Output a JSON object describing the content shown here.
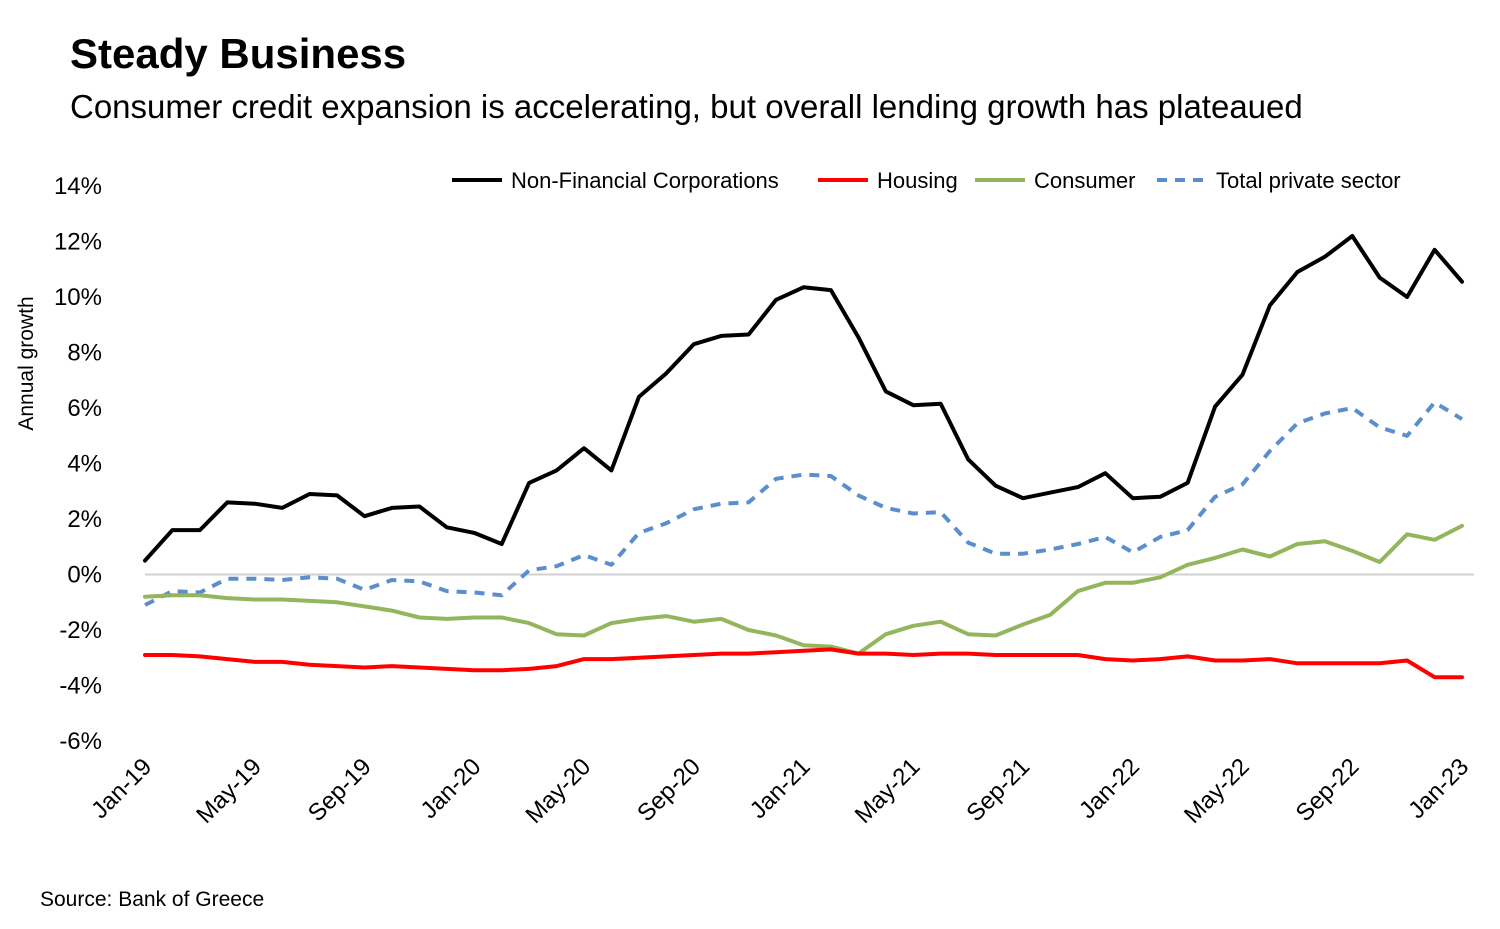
{
  "title": "Steady Business",
  "subtitle": "Consumer credit expansion is accelerating, but overall lending growth has plateaued",
  "source": "Source: Bank of Greece",
  "chart_data": {
    "type": "line",
    "ylabel": "Annual growth",
    "ylim": [
      -6,
      14
    ],
    "yticks": [
      14,
      12,
      10,
      8,
      6,
      4,
      2,
      0,
      -2,
      -4,
      -6
    ],
    "ytick_labels": [
      "14%",
      "12%",
      "10%",
      "8%",
      "6%",
      "4%",
      "2%",
      "0%",
      "-2%",
      "-4%",
      "-6%"
    ],
    "x": [
      "Jan-19",
      "Feb-19",
      "Mar-19",
      "Apr-19",
      "May-19",
      "Jun-19",
      "Jul-19",
      "Aug-19",
      "Sep-19",
      "Oct-19",
      "Nov-19",
      "Dec-19",
      "Jan-20",
      "Feb-20",
      "Mar-20",
      "Apr-20",
      "May-20",
      "Jun-20",
      "Jul-20",
      "Aug-20",
      "Sep-20",
      "Oct-20",
      "Nov-20",
      "Dec-20",
      "Jan-21",
      "Feb-21",
      "Mar-21",
      "Apr-21",
      "May-21",
      "Jun-21",
      "Jul-21",
      "Aug-21",
      "Sep-21",
      "Oct-21",
      "Nov-21",
      "Dec-21",
      "Jan-22",
      "Feb-22",
      "Mar-22",
      "Apr-22",
      "May-22",
      "Jun-22",
      "Jul-22",
      "Aug-22",
      "Sep-22",
      "Oct-22",
      "Nov-22",
      "Dec-22",
      "Jan-23"
    ],
    "xtick_labels": [
      "Jan-19",
      "May-19",
      "Sep-19",
      "Jan-20",
      "May-20",
      "Sep-20",
      "Jan-21",
      "May-21",
      "Sep-21",
      "Jan-22",
      "May-22",
      "Sep-22",
      "Jan-23"
    ],
    "legend_position": "top",
    "grid": false,
    "series": [
      {
        "name": "Non-Financial Corporations",
        "color": "#000000",
        "dash": false,
        "values": [
          0.5,
          1.6,
          1.6,
          2.6,
          2.55,
          2.4,
          2.9,
          2.85,
          2.1,
          2.4,
          2.45,
          1.7,
          1.5,
          1.1,
          3.3,
          3.75,
          4.55,
          3.75,
          6.4,
          7.25,
          8.3,
          8.6,
          8.65,
          9.9,
          10.35,
          10.25,
          8.55,
          6.6,
          6.1,
          6.15,
          4.15,
          3.2,
          2.75,
          2.95,
          3.15,
          3.65,
          2.75,
          2.8,
          3.3,
          6.05,
          7.2,
          9.7,
          10.9,
          11.45,
          12.2,
          10.7,
          10.0,
          11.7,
          10.55
        ]
      },
      {
        "name": "Housing",
        "color": "#ff0000",
        "dash": false,
        "values": [
          -2.9,
          -2.9,
          -2.95,
          -3.05,
          -3.15,
          -3.15,
          -3.25,
          -3.3,
          -3.35,
          -3.3,
          -3.35,
          -3.4,
          -3.45,
          -3.45,
          -3.4,
          -3.3,
          -3.05,
          -3.05,
          -3.0,
          -2.95,
          -2.9,
          -2.85,
          -2.85,
          -2.8,
          -2.75,
          -2.7,
          -2.85,
          -2.85,
          -2.9,
          -2.85,
          -2.85,
          -2.9,
          -2.9,
          -2.9,
          -2.9,
          -3.05,
          -3.1,
          -3.05,
          -2.95,
          -3.1,
          -3.1,
          -3.05,
          -3.2,
          -3.2,
          -3.2,
          -3.2,
          -3.1,
          -3.7,
          -3.7
        ]
      },
      {
        "name": "Consumer",
        "color": "#93b55c",
        "dash": false,
        "values": [
          -0.8,
          -0.75,
          -0.75,
          -0.85,
          -0.9,
          -0.9,
          -0.95,
          -1.0,
          -1.15,
          -1.3,
          -1.55,
          -1.6,
          -1.55,
          -1.55,
          -1.75,
          -2.15,
          -2.2,
          -1.75,
          -1.6,
          -1.5,
          -1.7,
          -1.6,
          -2.0,
          -2.2,
          -2.55,
          -2.6,
          -2.85,
          -2.15,
          -1.85,
          -1.7,
          -2.15,
          -2.2,
          -1.8,
          -1.45,
          -0.6,
          -0.3,
          -0.3,
          -0.1,
          0.35,
          0.6,
          0.9,
          0.65,
          1.1,
          1.2,
          0.85,
          0.45,
          1.45,
          1.25,
          1.75
        ]
      },
      {
        "name": "Total private sector",
        "color": "#5b8ecc",
        "dash": true,
        "values": [
          -1.1,
          -0.6,
          -0.65,
          -0.15,
          -0.15,
          -0.2,
          -0.1,
          -0.15,
          -0.55,
          -0.2,
          -0.25,
          -0.6,
          -0.65,
          -0.75,
          0.15,
          0.3,
          0.7,
          0.35,
          1.5,
          1.85,
          2.35,
          2.55,
          2.6,
          3.45,
          3.6,
          3.55,
          2.85,
          2.4,
          2.2,
          2.25,
          1.15,
          0.75,
          0.75,
          0.9,
          1.1,
          1.35,
          0.8,
          1.35,
          1.6,
          2.8,
          3.25,
          4.45,
          5.45,
          5.8,
          6.0,
          5.3,
          5.0,
          6.2,
          5.6
        ]
      }
    ]
  }
}
